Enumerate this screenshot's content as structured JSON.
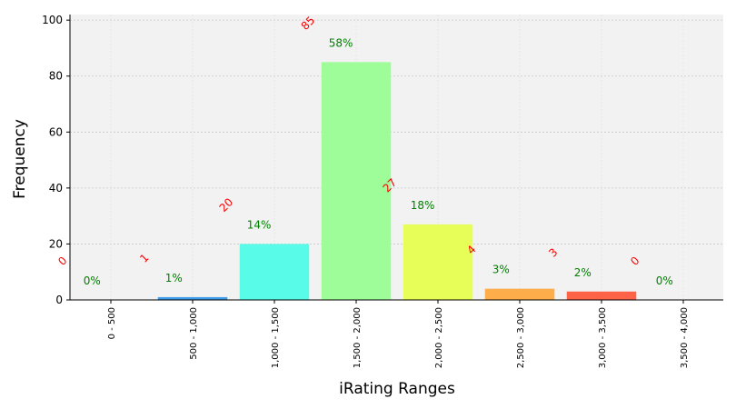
{
  "chart_data": {
    "type": "bar",
    "title": "",
    "xlabel": "iRating Ranges",
    "ylabel": "Frequency",
    "ylim": [
      0,
      102
    ],
    "yticks": [
      0,
      20,
      40,
      60,
      80,
      100
    ],
    "grid": true,
    "categories": [
      "0 - 500",
      "500 - 1,000",
      "1,000 - 1,500",
      "1,500 - 2,000",
      "2,000 - 2,500",
      "2,500 - 3,000",
      "3,000 - 3,500",
      "3,500 - 4,000"
    ],
    "values": [
      0,
      1,
      20,
      85,
      27,
      4,
      3,
      0
    ],
    "count_labels": [
      "0",
      "1",
      "20",
      "85",
      "27",
      "4",
      "3",
      "0"
    ],
    "percent_labels": [
      "0%",
      "1%",
      "14%",
      "58%",
      "18%",
      "3%",
      "2%",
      "0%"
    ],
    "colors": [
      "#d9d9d9",
      "#3d9be9",
      "#58fbe7",
      "#9efd98",
      "#e7fd58",
      "#fdae4a",
      "#ff6347",
      "#d9d9d9"
    ],
    "count_label_color": "#ff0000",
    "percent_label_color": "#008000",
    "plot_background": "#f2f2f2"
  }
}
